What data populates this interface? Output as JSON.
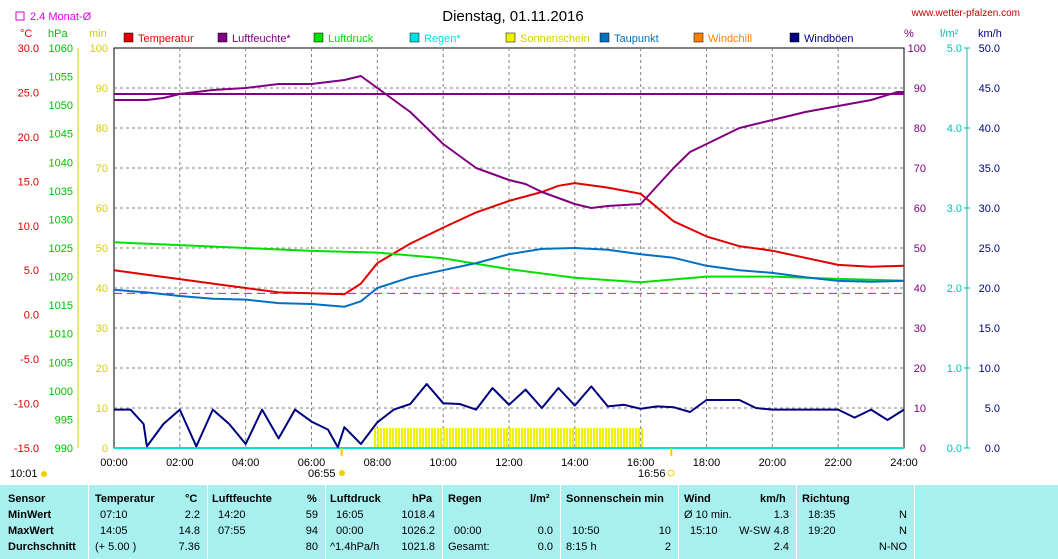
{
  "header": {
    "title": "Dienstag, 01.11.2016",
    "site": "www.wetter-pfalzen.com",
    "monat_label": "2.4 Monat-Ø"
  },
  "axes": {
    "celsius_unit": "°C",
    "hpa_unit": "hPa",
    "min_unit": "min",
    "percent_unit": "%",
    "rain_unit": "l/m²",
    "wind_unit": "km/h",
    "celsius_ticks": [
      "30.0",
      "25.0",
      "20.0",
      "15.0",
      "10.0",
      "5.0",
      "0.0",
      "-5.0",
      "-10.0",
      "-15.0"
    ],
    "hpa_ticks": [
      "1060",
      "1055",
      "1050",
      "1045",
      "1040",
      "1035",
      "1030",
      "1025",
      "1020",
      "1015",
      "1010",
      "1005",
      "1000",
      "995",
      "990"
    ],
    "min_ticks": [
      "100",
      "90",
      "80",
      "70",
      "60",
      "50",
      "40",
      "30",
      "20",
      "10",
      "0"
    ],
    "percent_ticks": [
      "100",
      "90",
      "80",
      "70",
      "60",
      "50",
      "40",
      "30",
      "20",
      "10",
      "0"
    ],
    "rain_ticks": [
      "5.0",
      "4.0",
      "3.0",
      "2.0",
      "1.0",
      "0.0"
    ],
    "wind_ticks": [
      "50.0",
      "45.0",
      "40.0",
      "35.0",
      "30.0",
      "25.0",
      "20.0",
      "15.0",
      "10.0",
      "5.0",
      "0.0"
    ],
    "time_ticks": [
      "00:00",
      "02:00",
      "04:00",
      "06:00",
      "08:00",
      "10:00",
      "12:00",
      "14:00",
      "16:00",
      "18:00",
      "20:00",
      "22:00",
      "24:00"
    ]
  },
  "sun": {
    "sunrise": "06:55",
    "sunset": "16:56",
    "day_length": "10:01"
  },
  "chart_data": {
    "type": "line",
    "x_unit": "hours",
    "xlim": [
      0,
      24
    ],
    "series": [
      {
        "name": "Temperatur",
        "color": "#e00000",
        "axis": "°C",
        "x": [
          0,
          1,
          2,
          3,
          4,
          5,
          6,
          7,
          7.5,
          8,
          9,
          10,
          11,
          12,
          13,
          13.5,
          14,
          15,
          16,
          17,
          18,
          19,
          20,
          21,
          22,
          23,
          24
        ],
        "y": [
          5.0,
          4.5,
          4.0,
          3.5,
          3.0,
          2.5,
          2.4,
          2.3,
          3.5,
          5.8,
          8.0,
          9.8,
          11.5,
          12.8,
          13.8,
          14.5,
          14.8,
          14.3,
          13.6,
          10.5,
          8.8,
          7.7,
          7.2,
          6.4,
          5.6,
          5.4,
          5.5
        ]
      },
      {
        "name": "Luftfeuchte*",
        "color": "#800080",
        "axis": "%",
        "x": [
          0,
          1,
          1.5,
          2,
          3,
          4,
          5,
          6,
          7,
          7.5,
          8,
          9,
          10,
          11,
          12,
          12.5,
          13,
          14,
          14.5,
          15,
          16,
          17,
          17.5,
          18,
          19,
          20,
          21,
          22,
          23,
          23.8,
          24
        ],
        "y": [
          87,
          87,
          87.5,
          88.5,
          89.5,
          90,
          91,
          91,
          92,
          93,
          90,
          84,
          76,
          70,
          67,
          66,
          64,
          61,
          60,
          60.5,
          61,
          70,
          74,
          76,
          80,
          82,
          84,
          85.5,
          87,
          89,
          89
        ]
      },
      {
        "name": "Luftfeuchte*",
        "color": "#800080",
        "axis": "%",
        "x": [
          0,
          24
        ],
        "y": [
          88.5,
          88.5
        ]
      },
      {
        "name": "Luftdruck",
        "color": "#00e000",
        "axis": "hPa",
        "x": [
          0,
          2,
          4,
          6,
          8,
          10,
          12,
          14,
          16,
          18,
          20,
          22,
          24
        ],
        "y": [
          1026.0,
          1025.5,
          1025.0,
          1024.5,
          1024.2,
          1023.2,
          1021.3,
          1019.8,
          1019.0,
          1020.0,
          1020.0,
          1019.6,
          1019.3
        ]
      },
      {
        "name": "Regen*",
        "color": "#00e0e0",
        "axis": "l/m²",
        "x": [
          0,
          24
        ],
        "y": [
          0,
          0
        ]
      },
      {
        "name": "Taupunkt",
        "color": "#0070c0",
        "axis": "°C",
        "x": [
          0,
          1,
          2,
          3,
          4,
          5,
          6,
          7,
          7.5,
          8,
          9,
          10,
          11,
          12,
          13,
          14,
          15,
          16,
          17,
          18,
          19,
          20,
          21,
          22,
          23,
          24
        ],
        "y": [
          2.8,
          2.5,
          2.1,
          1.8,
          1.7,
          1.3,
          1.2,
          0.9,
          1.5,
          3.0,
          4.2,
          5.0,
          5.8,
          6.8,
          7.4,
          7.5,
          7.3,
          6.8,
          6.4,
          5.5,
          5.0,
          4.7,
          4.2,
          3.8,
          3.7,
          3.8
        ]
      },
      {
        "name": "Windböen",
        "color": "#000080",
        "axis": "km/h",
        "x": [
          0,
          0.5,
          0.9,
          1,
          1.5,
          2,
          2.5,
          3,
          3.5,
          4,
          4.5,
          5,
          5.5,
          6,
          6.5,
          6.8,
          7,
          7.5,
          8,
          8.5,
          9,
          9.5,
          10,
          10.5,
          11,
          11.5,
          12,
          12.5,
          13,
          13.5,
          14,
          14.5,
          15,
          15.5,
          16,
          16.5,
          17,
          17.5,
          18,
          18.5,
          19,
          19.5,
          20,
          20.5,
          21,
          21.5,
          22,
          22.5,
          23,
          23.5,
          24
        ],
        "y": [
          4.8,
          4.8,
          3.0,
          0.2,
          3.0,
          4.8,
          0.2,
          4.8,
          3.0,
          0.5,
          4.8,
          1.2,
          4.8,
          3.3,
          2.3,
          0.1,
          2.6,
          0.5,
          3.2,
          4.8,
          5.5,
          8.0,
          5.6,
          5.5,
          4.8,
          7.5,
          5.4,
          7.3,
          5.0,
          7.5,
          5.3,
          7.7,
          5.2,
          5.4,
          4.9,
          5.2,
          5.1,
          4.5,
          6.0,
          6.0,
          6.0,
          5.0,
          4.8,
          4.8,
          4.8,
          4.8,
          4.8,
          3.8,
          4.8,
          3.5,
          4.8
        ]
      },
      {
        "name": "Sonnenschein",
        "color": "#f0f000",
        "axis": "min",
        "x": [
          7.9,
          16.1
        ],
        "y": [
          5,
          5
        ]
      }
    ],
    "reference": {
      "name": "2.4 Monat-Ø",
      "value": 2.4,
      "axis": "°C",
      "color": "#e000e0"
    }
  },
  "legend": [
    {
      "label": "Temperatur",
      "color": "#e00000"
    },
    {
      "label": "Luftfeuchte*",
      "color": "#800080"
    },
    {
      "label": "Luftdruck",
      "color": "#00e000"
    },
    {
      "label": "Regen*",
      "color": "#00e0e0"
    },
    {
      "label": "Sonnenschein",
      "color": "#f0f000"
    },
    {
      "label": "Taupunkt",
      "color": "#0070c0"
    },
    {
      "label": "Windchill",
      "color": "#ff8000"
    },
    {
      "label": "Windböen",
      "color": "#000080"
    }
  ],
  "table": {
    "sensor": [
      "Sensor",
      "MinWert",
      "MaxWert",
      "Durchschnitt"
    ],
    "temp": {
      "label": "Temperatur",
      "unit": "°C",
      "min_time": "07:10",
      "min_val": "2.2",
      "max_time": "14:05",
      "max_val": "14.8",
      "avg_extra": "(+ 5.00 )",
      "avg_val": "7.36"
    },
    "hum": {
      "label": "Luftfeuchte",
      "unit": "%",
      "min_time": "14:20",
      "min_val": "59",
      "max_time": "07:55",
      "max_val": "94",
      "avg_val": "80"
    },
    "press": {
      "label": "Luftdruck",
      "unit": "hPa",
      "min_time": "16:05",
      "min_val": "1018.4",
      "max_time": "00:00",
      "max_val": "1026.2",
      "avg_extra": "^1.4hPa/h",
      "avg_val": "1021.8"
    },
    "rain": {
      "label": "Regen",
      "unit": "l/m²",
      "max_time": "00:00",
      "max_val": "0.0",
      "avg_extra": "Gesamt:",
      "avg_val": "0.0"
    },
    "sun": {
      "label": "Sonnenschein min",
      "max_time": "10:50",
      "max_val": "10",
      "avg_extra": "8:15 h",
      "avg_val": "2"
    },
    "wind": {
      "label": "Wind",
      "unit": "km/h",
      "min_label": "Ø 10 min.",
      "min_val": "1.3",
      "max_time": "15:10",
      "max_val": "W-SW 4.8",
      "avg_val": "2.4"
    },
    "dir": {
      "label": "Richtung",
      "min_time": "18:35",
      "min_val": "N",
      "max_time": "19:20",
      "max_val": "N",
      "avg_val": "N-NO"
    }
  }
}
